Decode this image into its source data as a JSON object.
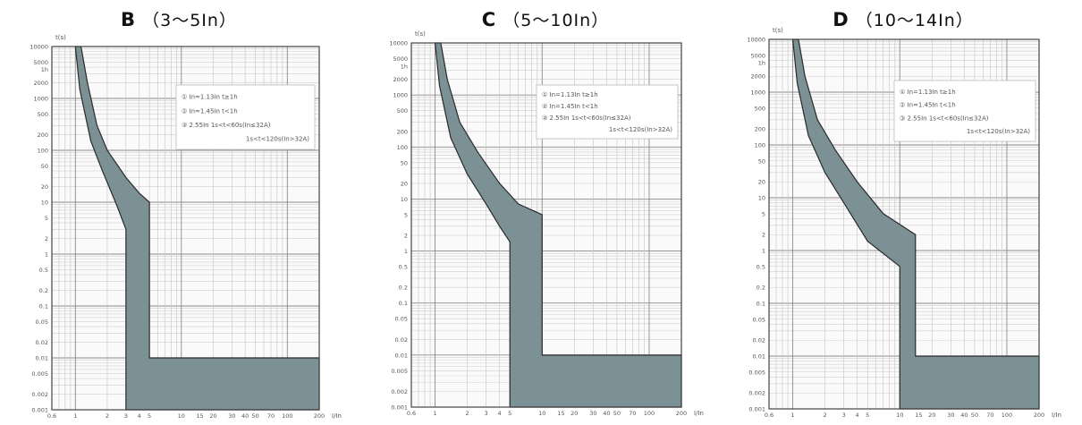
{
  "chart_data": [
    {
      "type": "area",
      "title": "B（3～5In）",
      "title_letter": "B",
      "title_range": "（3～5In）",
      "ylabel": "t(s)",
      "xlabel": "I/In",
      "x_scale": "log",
      "y_scale": "log",
      "xlim": [
        0.6,
        200
      ],
      "ylim": [
        0.001,
        10000
      ],
      "x_ticks": [
        "0.6",
        "1",
        "2",
        "3",
        "4",
        "5",
        "10",
        "15",
        "20",
        "30",
        "40",
        "50",
        "70",
        "100",
        "200"
      ],
      "x_tick_values": [
        0.6,
        1,
        2,
        3,
        4,
        5,
        10,
        15,
        20,
        30,
        40,
        50,
        70,
        100,
        200
      ],
      "y_ticks": [
        "10000",
        "5000",
        "1h",
        "2000",
        "1000",
        "500",
        "200",
        "100",
        "50",
        "20",
        "10",
        "5",
        "2",
        "1",
        "0.5",
        "0.2",
        "0.1",
        "0.05",
        "0.02",
        "0.01",
        "0.005",
        "0.002",
        "0.001"
      ],
      "y_tick_values": [
        10000,
        5000,
        3600,
        2000,
        1000,
        500,
        200,
        100,
        50,
        20,
        10,
        5,
        2,
        1,
        0.5,
        0.2,
        0.1,
        0.05,
        0.02,
        0.01,
        0.005,
        0.002,
        0.001
      ],
      "grid": true,
      "annotation": {
        "lines": [
          "① In=1.13In t≥1h",
          "② In=1.45In t<1h",
          "③ 2.55In 1s<t<60s(In≤32A)",
          "1s<t<120s(In>32A)"
        ]
      },
      "band_upper": {
        "x": [
          1.13,
          1.3,
          1.6,
          2,
          3,
          4,
          5,
          5,
          200
        ],
        "y": [
          10000,
          2000,
          300,
          100,
          30,
          15,
          10,
          0.01,
          0.01
        ]
      },
      "band_lower": {
        "x": [
          1.0,
          1.1,
          1.4,
          1.8,
          2.5,
          3,
          3,
          200
        ],
        "y": [
          10000,
          1500,
          150,
          40,
          8,
          3,
          0.001,
          0.001
        ]
      }
    },
    {
      "type": "area",
      "title": "C（5～10In）",
      "title_letter": "C",
      "title_range": "（5～10In）",
      "ylabel": "t(s)",
      "xlabel": "I/In",
      "x_scale": "log",
      "y_scale": "log",
      "xlim": [
        0.6,
        200
      ],
      "ylim": [
        0.001,
        10000
      ],
      "x_ticks": [
        "0.6",
        "1",
        "2",
        "3",
        "4",
        "5",
        "10",
        "15",
        "20",
        "30",
        "40",
        "50",
        "70",
        "100",
        "200"
      ],
      "x_tick_values": [
        0.6,
        1,
        2,
        3,
        4,
        5,
        10,
        15,
        20,
        30,
        40,
        50,
        70,
        100,
        200
      ],
      "y_ticks": [
        "10000",
        "5000",
        "1h",
        "2000",
        "1000",
        "500",
        "200",
        "100",
        "50",
        "20",
        "10",
        "5",
        "2",
        "1",
        "0.5",
        "0.2",
        "0.1",
        "0.05",
        "0.02",
        "0.01",
        "0.005",
        "0.002",
        "0.001"
      ],
      "y_tick_values": [
        10000,
        5000,
        3600,
        2000,
        1000,
        500,
        200,
        100,
        50,
        20,
        10,
        5,
        2,
        1,
        0.5,
        0.2,
        0.1,
        0.05,
        0.02,
        0.01,
        0.005,
        0.002,
        0.001
      ],
      "grid": true,
      "annotation": {
        "lines": [
          "① In=1.13In t≥1h",
          "② In=1.45In t<1h",
          "③ 2.55In 1s<t<60s(In≤32A)",
          "1s<t<120s(In>32A)"
        ]
      },
      "band_upper": {
        "x": [
          1.13,
          1.3,
          1.7,
          2.5,
          4,
          6,
          10,
          10,
          200
        ],
        "y": [
          10000,
          2000,
          300,
          80,
          20,
          8,
          5,
          0.01,
          0.01
        ]
      },
      "band_lower": {
        "x": [
          1.0,
          1.1,
          1.4,
          2,
          3,
          4,
          5,
          5,
          200
        ],
        "y": [
          10000,
          1500,
          150,
          30,
          8,
          3,
          1.5,
          0.001,
          0.001
        ]
      }
    },
    {
      "type": "area",
      "title": "D（10～14In）",
      "title_letter": "D",
      "title_range": "（10～14In）",
      "ylabel": "t(s)",
      "xlabel": "I/In",
      "x_scale": "log",
      "y_scale": "log",
      "xlim": [
        0.6,
        200
      ],
      "ylim": [
        0.001,
        10000
      ],
      "x_ticks": [
        "0.6",
        "1",
        "2",
        "3",
        "4",
        "5",
        "10",
        "15",
        "20",
        "30",
        "40",
        "50",
        "70",
        "100",
        "200"
      ],
      "x_tick_values": [
        0.6,
        1,
        2,
        3,
        4,
        5,
        10,
        15,
        20,
        30,
        40,
        50,
        70,
        100,
        200
      ],
      "y_ticks": [
        "10000",
        "5000",
        "1h",
        "2000",
        "1000",
        "500",
        "200",
        "100",
        "50",
        "20",
        "10",
        "5",
        "2",
        "1",
        "0.5",
        "0.2",
        "0.1",
        "0.05",
        "0.02",
        "0.01",
        "0.005",
        "0.002",
        "0.001"
      ],
      "y_tick_values": [
        10000,
        5000,
        3600,
        2000,
        1000,
        500,
        200,
        100,
        50,
        20,
        10,
        5,
        2,
        1,
        0.5,
        0.2,
        0.1,
        0.05,
        0.02,
        0.01,
        0.005,
        0.002,
        0.001
      ],
      "grid": true,
      "annotation": {
        "lines": [
          "① In=1.13In t≥1h",
          "② In=1.45In t<1h",
          "③ 2.55In 1s<t<60s(In≤32A)",
          "1s<t<120s(In>32A)"
        ]
      },
      "band_upper": {
        "x": [
          1.13,
          1.3,
          1.7,
          2.5,
          4,
          7,
          14,
          14,
          200
        ],
        "y": [
          10000,
          2000,
          300,
          80,
          20,
          5,
          2,
          0.01,
          0.01
        ]
      },
      "band_lower": {
        "x": [
          1.0,
          1.1,
          1.4,
          2,
          3,
          5,
          10,
          10,
          200
        ],
        "y": [
          10000,
          1500,
          150,
          30,
          8,
          1.5,
          0.5,
          0.001,
          0.001
        ]
      }
    }
  ]
}
